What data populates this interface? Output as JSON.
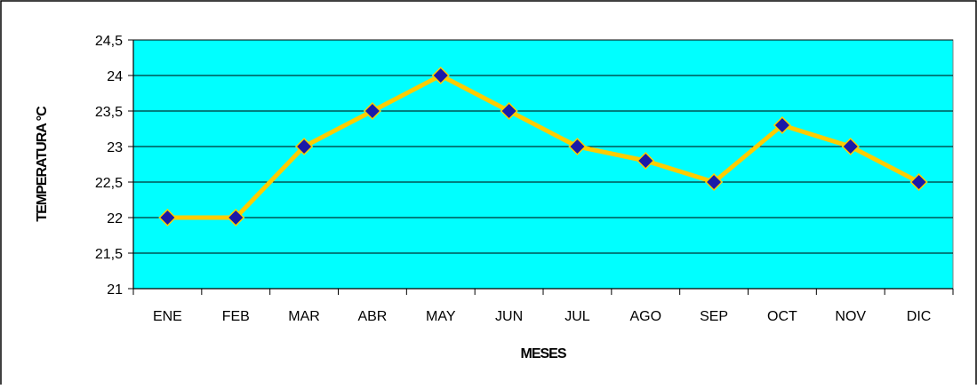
{
  "chart_data": {
    "type": "line",
    "categories": [
      "ENE",
      "FEB",
      "MAR",
      "ABR",
      "MAY",
      "JUN",
      "JUL",
      "AGO",
      "SEP",
      "OCT",
      "NOV",
      "DIC"
    ],
    "values": [
      22,
      22,
      23,
      23.5,
      24,
      23.5,
      23,
      22.8,
      22.5,
      23.3,
      23,
      22.5
    ],
    "ylim": [
      21,
      24.5
    ],
    "yticks": [
      "21",
      "21,5",
      "22",
      "22,5",
      "23",
      "23,5",
      "24",
      "24,5"
    ],
    "xlabel": "MESES",
    "ylabel": "TEMPERATURA °C",
    "grid": true,
    "legend": "none",
    "colors": {
      "plot_background": "#00ffff",
      "line": "#ffcc00",
      "marker": "#1a1aa8",
      "gridline": "#000000",
      "border": "#000000"
    }
  }
}
